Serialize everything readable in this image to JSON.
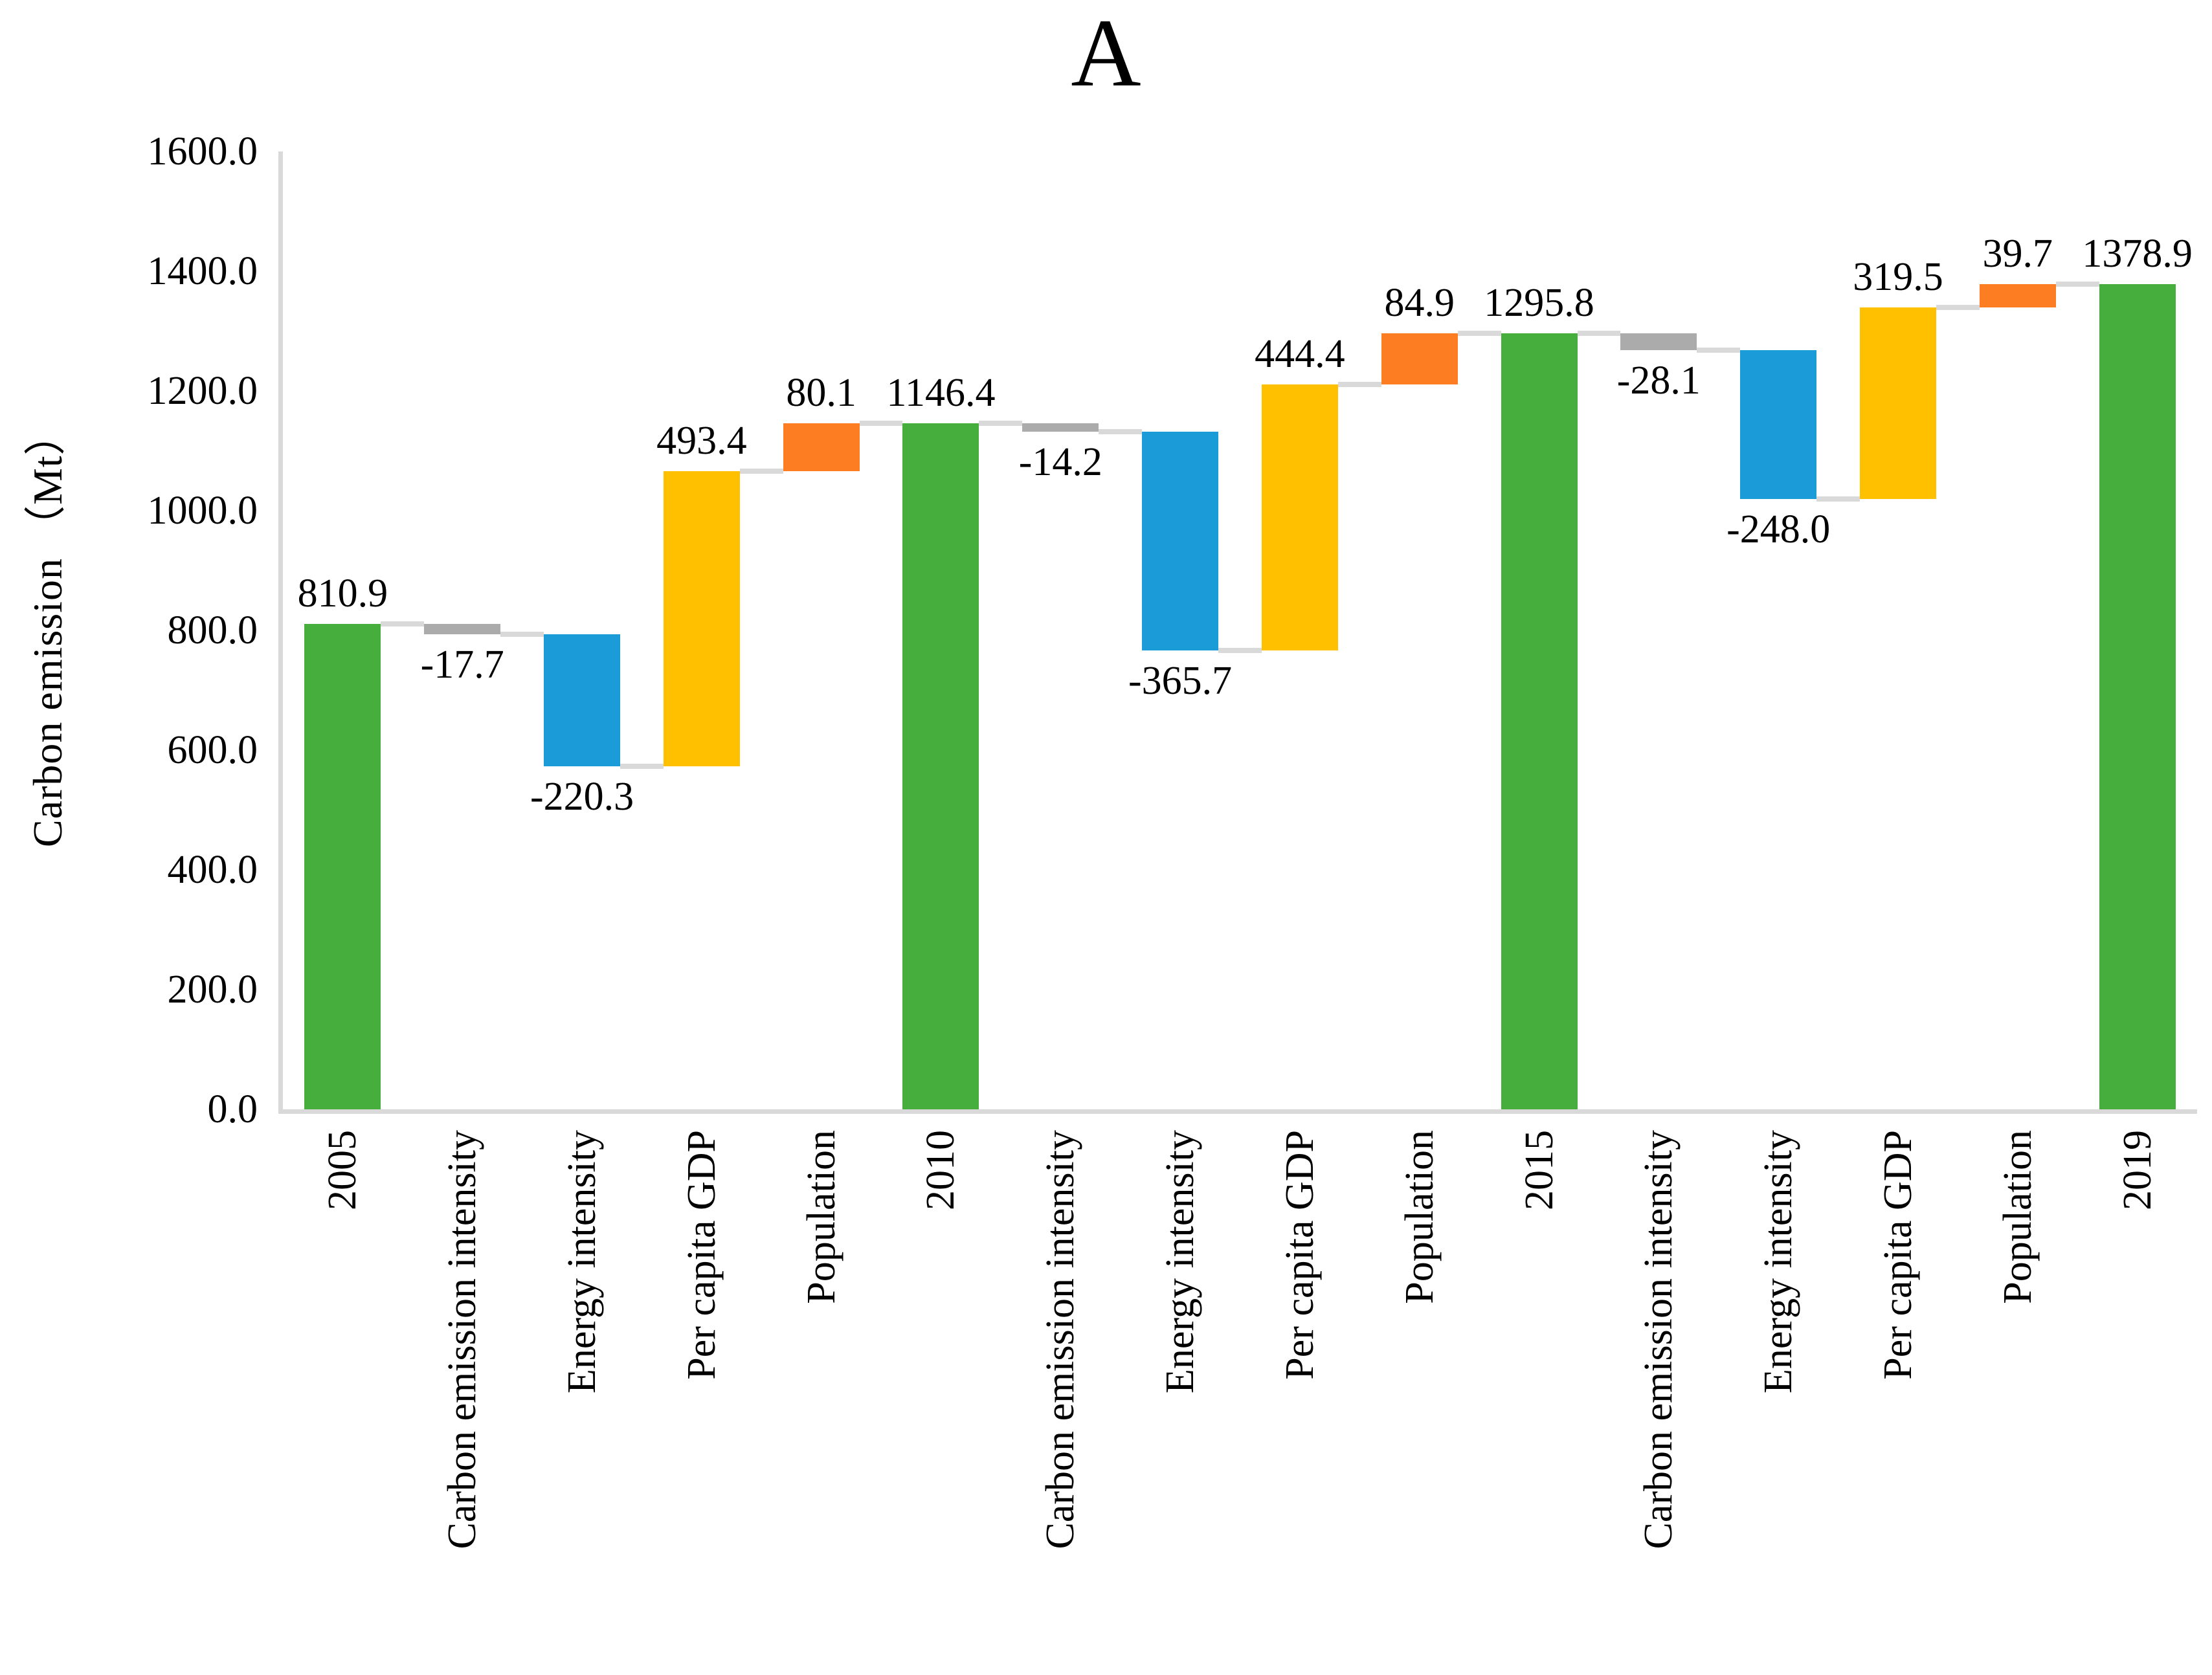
{
  "chart_data": {
    "type": "bar",
    "subtype": "waterfall",
    "title": "A",
    "ylabel": "Carbon emission （Mt）",
    "xlabel": "",
    "ylim": [
      0,
      1600
    ],
    "ytick_step": 200,
    "ytick_labels": [
      "0.0",
      "200.0",
      "400.0",
      "600.0",
      "800.0",
      "1000.0",
      "1200.0",
      "1400.0",
      "1600.0"
    ],
    "grid": false,
    "legend": false,
    "categories": [
      "2005",
      "Carbon emission intensity",
      "Energy intensity",
      "Per capita GDP",
      "Population",
      "2010",
      "Carbon emission intensity",
      "Energy intensity",
      "Per capita GDP",
      "Population",
      "2015",
      "Carbon emission intensity",
      "Energy intensity",
      "Per capita GDP",
      "Population",
      "2019"
    ],
    "values": [
      810.9,
      -17.7,
      -220.3,
      493.4,
      80.1,
      1146.4,
      -14.2,
      -365.7,
      444.4,
      84.9,
      1295.8,
      -28.1,
      -248.0,
      319.5,
      39.7,
      1378.9
    ],
    "value_labels": [
      "810.9",
      "-17.7",
      "-220.3",
      "493.4",
      "80.1",
      "1146.4",
      "-14.2",
      "-365.7",
      "444.4",
      "84.9",
      "1295.8",
      "-28.1",
      "-248.0",
      "319.5",
      "39.7",
      "1378.9"
    ],
    "bar_roles": [
      "total",
      "delta",
      "delta",
      "delta",
      "delta",
      "total",
      "delta",
      "delta",
      "delta",
      "delta",
      "total",
      "delta",
      "delta",
      "delta",
      "delta",
      "total"
    ],
    "color_keys": [
      "year",
      "carbon_emission_intensity",
      "energy_intensity",
      "per_capita_gdp",
      "population",
      "year",
      "carbon_emission_intensity",
      "energy_intensity",
      "per_capita_gdp",
      "population",
      "year",
      "carbon_emission_intensity",
      "energy_intensity",
      "per_capita_gdp",
      "population",
      "year"
    ],
    "palette": {
      "year": "#45AE3C",
      "carbon_emission_intensity": "#ABABAB",
      "energy_intensity": "#1B9CD9",
      "per_capita_gdp": "#FFC000",
      "population": "#FD7D23"
    },
    "axis_color": "#D9D9D9",
    "connector_color": "#D9D9D9",
    "text_color": "#000000"
  }
}
